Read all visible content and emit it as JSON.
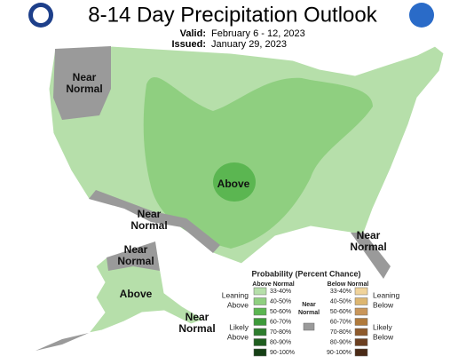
{
  "header": {
    "title": "8-14 Day Precipitation Outlook",
    "valid_label": "Valid:",
    "valid": "February 6 - 12, 2023",
    "issued_label": "Issued:",
    "issued": "January 29, 2023"
  },
  "map_labels": [
    {
      "lines": [
        "Near",
        "Normal"
      ]
    },
    {
      "lines": [
        "Above"
      ]
    },
    {
      "lines": [
        "Near",
        "Normal"
      ]
    },
    {
      "lines": [
        "Near",
        "Normal"
      ]
    },
    {
      "lines": [
        "Near",
        "Normal"
      ]
    },
    {
      "lines": [
        "Above"
      ]
    },
    {
      "lines": [
        "Near",
        "Normal"
      ]
    }
  ],
  "legend": {
    "title": "Probability (Percent Chance)",
    "above_header": "Above Normal",
    "below_header": "Below Normal",
    "near_header": [
      "Near",
      "Normal"
    ],
    "above_ranges": [
      "33-40%",
      "40-50%",
      "50-60%",
      "60-70%",
      "70-80%",
      "80-90%",
      "90-100%"
    ],
    "above_colors": [
      "#b6dfaa",
      "#8fcf80",
      "#5bb651",
      "#3d9a3a",
      "#2e7d2e",
      "#1f5e1f",
      "#154015"
    ],
    "below_ranges": [
      "33-40%",
      "40-50%",
      "50-60%",
      "60-70%",
      "70-80%",
      "80-90%",
      "90-100%"
    ],
    "below_colors": [
      "#f0d39a",
      "#ddb670",
      "#c9965a",
      "#b07a3c",
      "#8e5a2c",
      "#6b3f20",
      "#4a2a16"
    ],
    "near_color": "#9a9a9a",
    "leaning_above": [
      "Leaning",
      "Above"
    ],
    "likely_above": [
      "Likely",
      "Above"
    ],
    "leaning_below": [
      "Leaning",
      "Below"
    ],
    "likely_below": [
      "Likely",
      "Below"
    ]
  }
}
